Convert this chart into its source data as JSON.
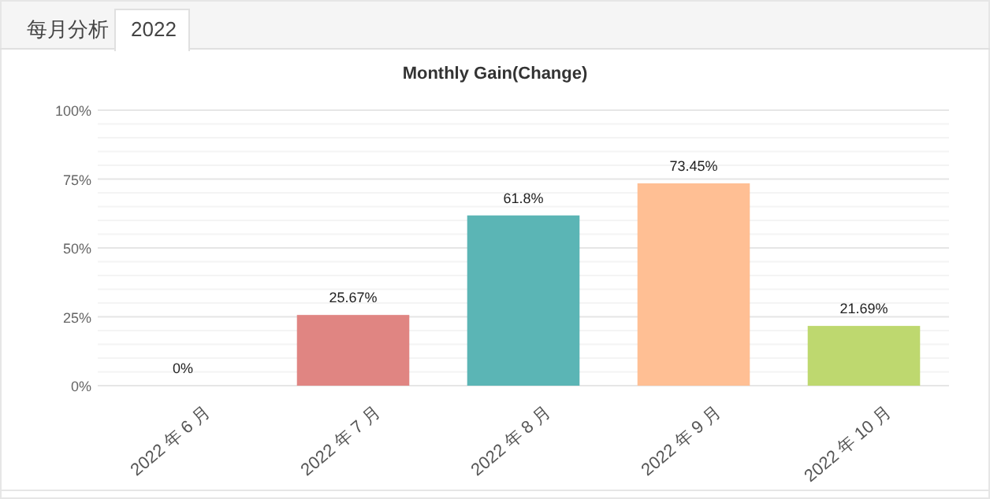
{
  "chart_data": {
    "type": "bar",
    "title": "Monthly Gain(Change)",
    "annotations": [
      "每月分析",
      "2022"
    ],
    "categories": [
      "2022 年 6 月",
      "2022 年 7 月",
      "2022 年 8 月",
      "2022 年 9 月",
      "2022 年 10 月"
    ],
    "values": [
      0,
      25.67,
      61.8,
      73.45,
      21.69
    ],
    "colors": [
      "#e08582",
      "#e08582",
      "#5bb5b5",
      "#ffbf94",
      "#bed86f"
    ],
    "value_labels": [
      "0%",
      "25.67%",
      "61.8%",
      "73.45%",
      "21.69%"
    ],
    "ylim": [
      0,
      100
    ],
    "yticks": [
      {
        "value": 0,
        "label": "0%"
      },
      {
        "value": 5,
        "label": null
      },
      {
        "value": 10,
        "label": null
      },
      {
        "value": 15,
        "label": null
      },
      {
        "value": 20,
        "label": null
      },
      {
        "value": 25,
        "label": "25%"
      },
      {
        "value": 30,
        "label": null
      },
      {
        "value": 35,
        "label": null
      },
      {
        "value": 40,
        "label": null
      },
      {
        "value": 45,
        "label": null
      },
      {
        "value": 50,
        "label": "50%"
      },
      {
        "value": 55,
        "label": null
      },
      {
        "value": 60,
        "label": null
      },
      {
        "value": 65,
        "label": null
      },
      {
        "value": 70,
        "label": null
      },
      {
        "value": 75,
        "label": "75%"
      },
      {
        "value": 80,
        "label": null
      },
      {
        "value": 85,
        "label": null
      },
      {
        "value": 90,
        "label": null
      },
      {
        "value": 95,
        "label": null
      },
      {
        "value": 100,
        "label": "100%"
      }
    ],
    "grid": "y"
  }
}
